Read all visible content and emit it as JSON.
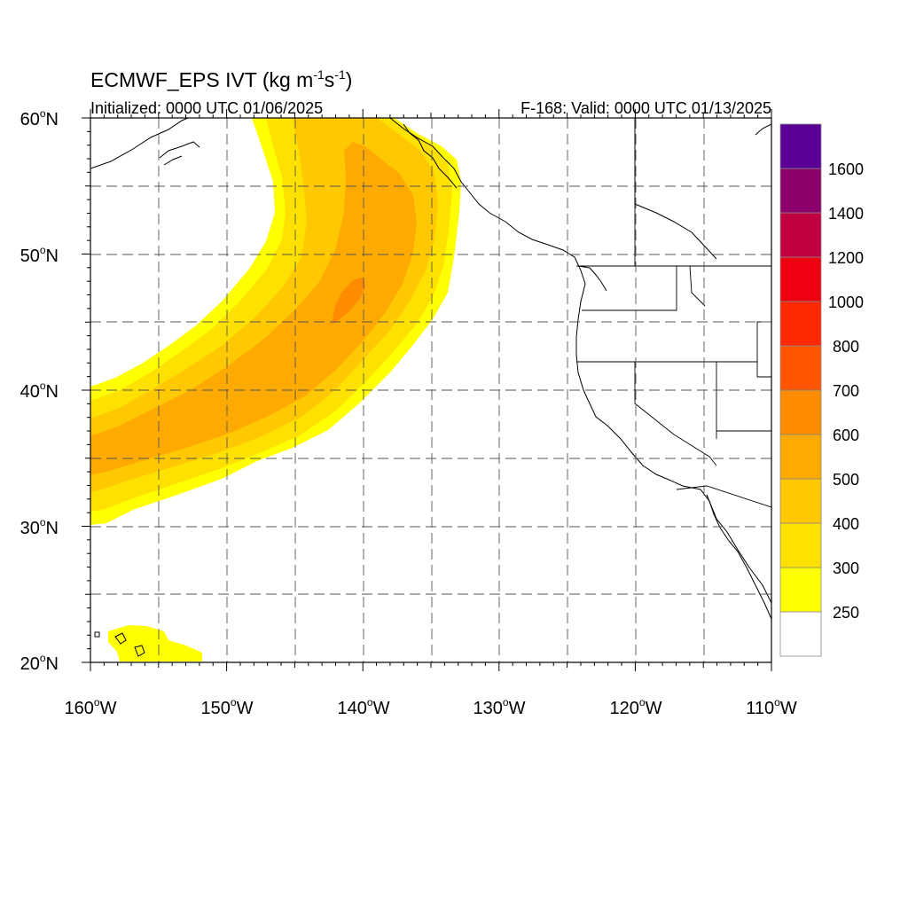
{
  "title": {
    "main": "ECMWF_EPS IVT (kg m",
    "exp1": "-1",
    "mid": "s",
    "exp2": "-1",
    "close": ")"
  },
  "subtitle_left": "Initialized: 0000 UTC 01/06/2025",
  "subtitle_right": "F-168: Valid: 0000 UTC 01/13/2025",
  "map": {
    "projection": "cylindrical equidistant",
    "lon_range": [
      -160,
      -110
    ],
    "lat_range": [
      20,
      60
    ],
    "gridlines": true,
    "gridline_style": "dashed",
    "lat_ticks": [
      {
        "value": 20,
        "label": "20",
        "deg": "o",
        "hem": "N"
      },
      {
        "value": 30,
        "label": "30",
        "deg": "o",
        "hem": "N"
      },
      {
        "value": 40,
        "label": "40",
        "deg": "o",
        "hem": "N"
      },
      {
        "value": 50,
        "label": "50",
        "deg": "o",
        "hem": "N"
      },
      {
        "value": 60,
        "label": "60",
        "deg": "o",
        "hem": "N"
      }
    ],
    "lon_ticks": [
      {
        "value": -160,
        "label": "160",
        "deg": "o",
        "hem": "W"
      },
      {
        "value": -150,
        "label": "150",
        "deg": "o",
        "hem": "W"
      },
      {
        "value": -140,
        "label": "140",
        "deg": "o",
        "hem": "W"
      },
      {
        "value": -130,
        "label": "130",
        "deg": "o",
        "hem": "W"
      },
      {
        "value": -120,
        "label": "120",
        "deg": "o",
        "hem": "W"
      },
      {
        "value": -110,
        "label": "110",
        "deg": "o",
        "hem": "W"
      }
    ]
  },
  "colorbar": {
    "labels": [
      "250",
      "300",
      "400",
      "500",
      "600",
      "700",
      "800",
      "1000",
      "1200",
      "1400",
      "1600"
    ],
    "colors": [
      "#ffffff",
      "#ffff00",
      "#ffe100",
      "#ffc800",
      "#ffaa00",
      "#ff8c00",
      "#ff5500",
      "#ff2800",
      "#ee0010",
      "#c00040",
      "#8b006a",
      "#5b0096"
    ]
  },
  "ivt_field": {
    "units": "kg m-1 s-1",
    "feature": "atmospheric river plume from subtropical Pacific toward Gulf of Alaska coast",
    "levels": [
      {
        "min": 250,
        "color": "#ffff00"
      },
      {
        "min": 300,
        "color": "#ffe100"
      },
      {
        "min": 400,
        "color": "#ffc800"
      },
      {
        "min": 500,
        "color": "#ffaa00"
      },
      {
        "min": 600,
        "color": "#ff8c00"
      }
    ]
  }
}
